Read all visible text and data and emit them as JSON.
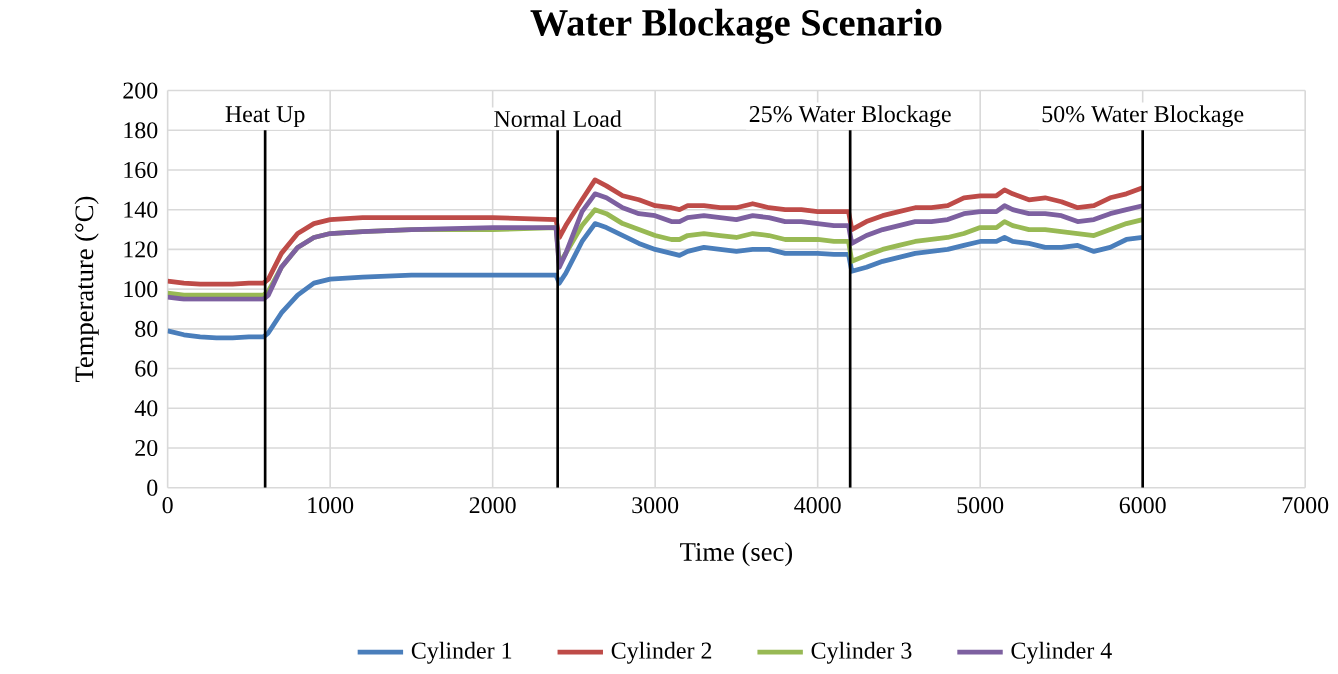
{
  "chart_data": {
    "type": "line",
    "title": "Water Blockage Scenario",
    "xlabel": "Time (sec)",
    "ylabel": "Temperature (°C)",
    "x": [
      0,
      100,
      200,
      300,
      400,
      500,
      590,
      620,
      700,
      800,
      900,
      1000,
      1200,
      1500,
      2000,
      2390,
      2410,
      2450,
      2550,
      2630,
      2700,
      2800,
      2900,
      3000,
      3100,
      3150,
      3200,
      3300,
      3400,
      3500,
      3600,
      3700,
      3800,
      3900,
      4000,
      4100,
      4190,
      4210,
      4300,
      4400,
      4500,
      4600,
      4700,
      4800,
      4900,
      5000,
      5100,
      5150,
      5200,
      5300,
      5400,
      5500,
      5600,
      5700,
      5800,
      5900,
      6000
    ],
    "series": [
      {
        "name": "Cylinder 1",
        "color": "#4a7ebb",
        "values": [
          79,
          77,
          76,
          75.5,
          75.5,
          76,
          76,
          78,
          88,
          97,
          103,
          105,
          106,
          107,
          107,
          107,
          103,
          108,
          124,
          133,
          131,
          127,
          123,
          120,
          118,
          117,
          119,
          121,
          120,
          119,
          120,
          120,
          118,
          118,
          118,
          117.5,
          117.5,
          109,
          111,
          114,
          116,
          118,
          119,
          120,
          122,
          124,
          124,
          126,
          124,
          123,
          121,
          121,
          122,
          119,
          121,
          125,
          126
        ]
      },
      {
        "name": "Cylinder 2",
        "color": "#be4b48",
        "values": [
          104,
          103,
          102.5,
          102.5,
          102.5,
          103,
          103,
          105,
          118,
          128,
          133,
          135,
          136,
          136,
          136,
          135,
          126,
          132,
          145,
          155,
          152,
          147,
          145,
          142,
          141,
          140,
          142,
          142,
          141,
          141,
          143,
          141,
          140,
          140,
          139,
          139,
          139,
          130,
          134,
          137,
          139,
          141,
          141,
          142,
          146,
          147,
          147,
          150,
          148,
          145,
          146,
          144,
          141,
          142,
          146,
          148,
          151
        ]
      },
      {
        "name": "Cylinder 3",
        "color": "#98b954",
        "values": [
          98,
          97,
          97,
          97,
          97,
          97,
          97,
          99,
          111,
          121,
          126,
          128,
          129,
          130,
          130,
          131,
          113,
          118,
          132,
          140,
          138,
          133,
          130,
          127,
          125,
          125,
          127,
          128,
          127,
          126,
          128,
          127,
          125,
          125,
          125,
          124,
          124,
          114,
          117,
          120,
          122,
          124,
          125,
          126,
          128,
          131,
          131,
          134,
          132,
          130,
          130,
          129,
          128,
          127,
          130,
          133,
          135
        ]
      },
      {
        "name": "Cylinder 4",
        "color": "#7d60a0",
        "values": [
          96,
          95,
          95,
          95,
          95,
          95,
          95,
          97,
          111,
          121,
          126,
          128,
          129,
          130,
          131,
          131,
          111,
          118,
          139,
          148,
          146,
          141,
          138,
          137,
          134,
          134,
          136,
          137,
          136,
          135,
          137,
          136,
          134,
          134,
          133,
          132,
          132,
          123,
          127,
          130,
          132,
          134,
          134,
          135,
          138,
          139,
          139,
          142,
          140,
          138,
          138,
          137,
          134,
          135,
          138,
          140,
          142
        ]
      }
    ],
    "xlim": [
      0,
      7000
    ],
    "xticks": [
      0,
      1000,
      2000,
      3000,
      4000,
      5000,
      6000,
      7000
    ],
    "ylim": [
      0,
      200
    ],
    "yticks": [
      0,
      20,
      40,
      60,
      80,
      100,
      120,
      140,
      160,
      180,
      200
    ],
    "grid": true,
    "legend": "bottom",
    "marker": "none",
    "line_style": "solid",
    "ref_lines": [
      {
        "axis": "x",
        "value": 600,
        "label": "Heat Up",
        "color": "#000000"
      },
      {
        "axis": "x",
        "value": 2400,
        "label": "Normal Load",
        "color": "#000000"
      },
      {
        "axis": "x",
        "value": 4200,
        "label": "25% Water Blockage",
        "color": "#000000"
      },
      {
        "axis": "x",
        "value": 6000,
        "label": "50% Water Blockage",
        "color": "#000000"
      }
    ]
  }
}
